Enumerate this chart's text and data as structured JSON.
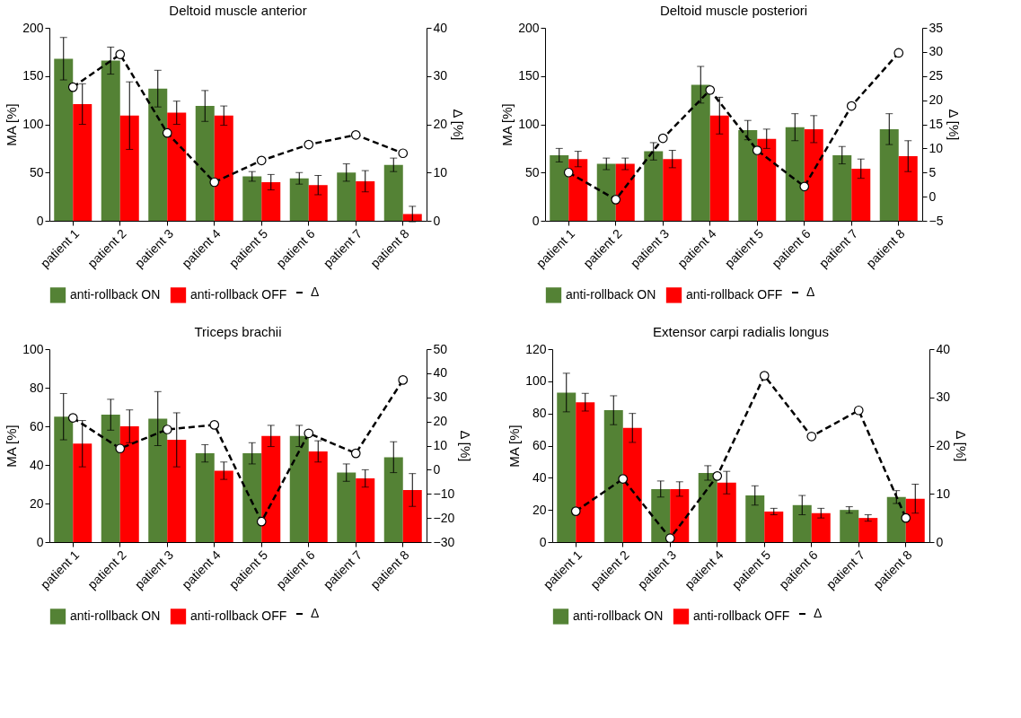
{
  "chart_data": [
    {
      "type": "bar",
      "title": "Deltoid muscle anterior",
      "ylabel": "MA [%]",
      "y2label": "Δ [%]",
      "legend": "bottom",
      "categories": [
        "patient 1",
        "patient 2",
        "patient 3",
        "patient 4",
        "patient 5",
        "patient 6",
        "patient 7",
        "patient 8"
      ],
      "ylim": [
        0,
        200
      ],
      "yticks": [
        0,
        50,
        100,
        150,
        200
      ],
      "y2lim": [
        0,
        40
      ],
      "y2ticks": [
        0,
        10,
        20,
        30,
        40
      ],
      "series": [
        {
          "name": "anti-rollback ON",
          "color": "#548235",
          "values": [
            168,
            166,
            137,
            119,
            46,
            44,
            50,
            58
          ],
          "errors": [
            22,
            14,
            19,
            16,
            5,
            6,
            9,
            7
          ]
        },
        {
          "name": "anti-rollback OFF",
          "color": "#ff0000",
          "values": [
            121,
            109,
            112,
            109,
            40,
            37,
            41,
            7
          ],
          "errors": [
            21,
            35,
            12,
            10,
            8,
            10,
            11,
            8
          ]
        },
        {
          "name": "Δ",
          "type": "line",
          "axis": "y2",
          "color": "#000000",
          "marker": "circle",
          "line_style": "dashed",
          "values": [
            27.7,
            34.5,
            18.2,
            8,
            12.5,
            15.8,
            17.8,
            14
          ]
        }
      ]
    },
    {
      "type": "bar",
      "title": "Deltoid muscle posteriori",
      "ylabel": "MA [%]",
      "y2label": "Δ [%]",
      "legend": "bottom",
      "categories": [
        "patient 1",
        "patient 2",
        "patient 3",
        "patient 4",
        "patient 5",
        "patient 6",
        "patient 7",
        "patient 8"
      ],
      "ylim": [
        0,
        200
      ],
      "yticks": [
        0,
        50,
        100,
        150,
        200
      ],
      "y2lim": [
        -5,
        35
      ],
      "y2ticks": [
        -5,
        0,
        5,
        10,
        15,
        20,
        25,
        30,
        35
      ],
      "series": [
        {
          "name": "anti-rollback ON",
          "color": "#548235",
          "values": [
            68,
            59,
            72,
            141,
            94,
            97,
            68,
            95
          ],
          "errors": [
            7,
            6,
            9,
            19,
            10,
            14,
            9,
            16
          ]
        },
        {
          "name": "anti-rollback OFF",
          "color": "#ff0000",
          "values": [
            64,
            59,
            64,
            109,
            85,
            95,
            54,
            67
          ],
          "errors": [
            8,
            6,
            9,
            19,
            10,
            14,
            10,
            16
          ]
        },
        {
          "name": "Δ",
          "type": "line",
          "axis": "y2",
          "color": "#000000",
          "marker": "circle",
          "line_style": "dashed",
          "values": [
            5,
            -0.6,
            12.1,
            22.1,
            9.6,
            2.1,
            18.8,
            29.8
          ]
        }
      ]
    },
    {
      "type": "bar",
      "title": "Triceps brachii",
      "ylabel": "MA [%]",
      "y2label": "Δ [%]",
      "legend": "bottom",
      "categories": [
        "patient 1",
        "patient 2",
        "patient 3",
        "patient 4",
        "patient 5",
        "patient 6",
        "patient 7",
        "patient 8"
      ],
      "ylim": [
        0,
        100
      ],
      "yticks": [
        0,
        20,
        40,
        60,
        80,
        100
      ],
      "y2lim": [
        -30,
        50
      ],
      "y2ticks": [
        -30,
        -20,
        -10,
        0,
        10,
        20,
        30,
        40,
        50
      ],
      "series": [
        {
          "name": "anti-rollback ON",
          "color": "#548235",
          "values": [
            65,
            66,
            64,
            46,
            46,
            55,
            36,
            44
          ],
          "errors": [
            12,
            8,
            14,
            4.5,
            5.5,
            5.5,
            4.5,
            8
          ]
        },
        {
          "name": "anti-rollback OFF",
          "color": "#ff0000",
          "values": [
            51,
            60,
            53,
            37,
            55,
            47,
            33,
            27
          ],
          "errors": [
            12,
            8.5,
            14,
            4.5,
            5.5,
            5.5,
            4.5,
            8.5
          ]
        },
        {
          "name": "Δ",
          "type": "line",
          "axis": "y2",
          "color": "#000000",
          "marker": "circle",
          "line_style": "dashed",
          "values": [
            21.5,
            8.8,
            16.7,
            18.6,
            -21.5,
            15.1,
            6.8,
            37.2
          ]
        }
      ]
    },
    {
      "type": "bar",
      "title": "Extensor carpi radialis longus",
      "ylabel": "MA [%]",
      "y2label": "Δ [%]",
      "legend": "bottom",
      "categories": [
        "patient 1",
        "patient 2",
        "patient 3",
        "patient 4",
        "patient 5",
        "patient 6",
        "patient 7",
        "patient 8"
      ],
      "ylim": [
        0,
        120
      ],
      "yticks": [
        0,
        20,
        40,
        60,
        80,
        100,
        120
      ],
      "y2lim": [
        0,
        40
      ],
      "y2ticks": [
        0,
        10,
        20,
        30,
        40
      ],
      "series": [
        {
          "name": "anti-rollback ON",
          "color": "#548235",
          "values": [
            93,
            82,
            33,
            43,
            29,
            23,
            20,
            28
          ],
          "errors": [
            12,
            9,
            5,
            4.5,
            6,
            6,
            2,
            4
          ]
        },
        {
          "name": "anti-rollback OFF",
          "color": "#ff0000",
          "values": [
            87,
            71,
            33,
            37,
            19,
            18,
            15,
            27
          ],
          "errors": [
            5.5,
            9,
            4.5,
            7,
            2,
            3,
            2,
            9
          ]
        },
        {
          "name": "Δ",
          "type": "line",
          "axis": "y2",
          "color": "#000000",
          "marker": "circle",
          "line_style": "dashed",
          "values": [
            6.4,
            13.1,
            0.8,
            13.7,
            34.5,
            21.9,
            27.3,
            5
          ]
        }
      ]
    }
  ]
}
